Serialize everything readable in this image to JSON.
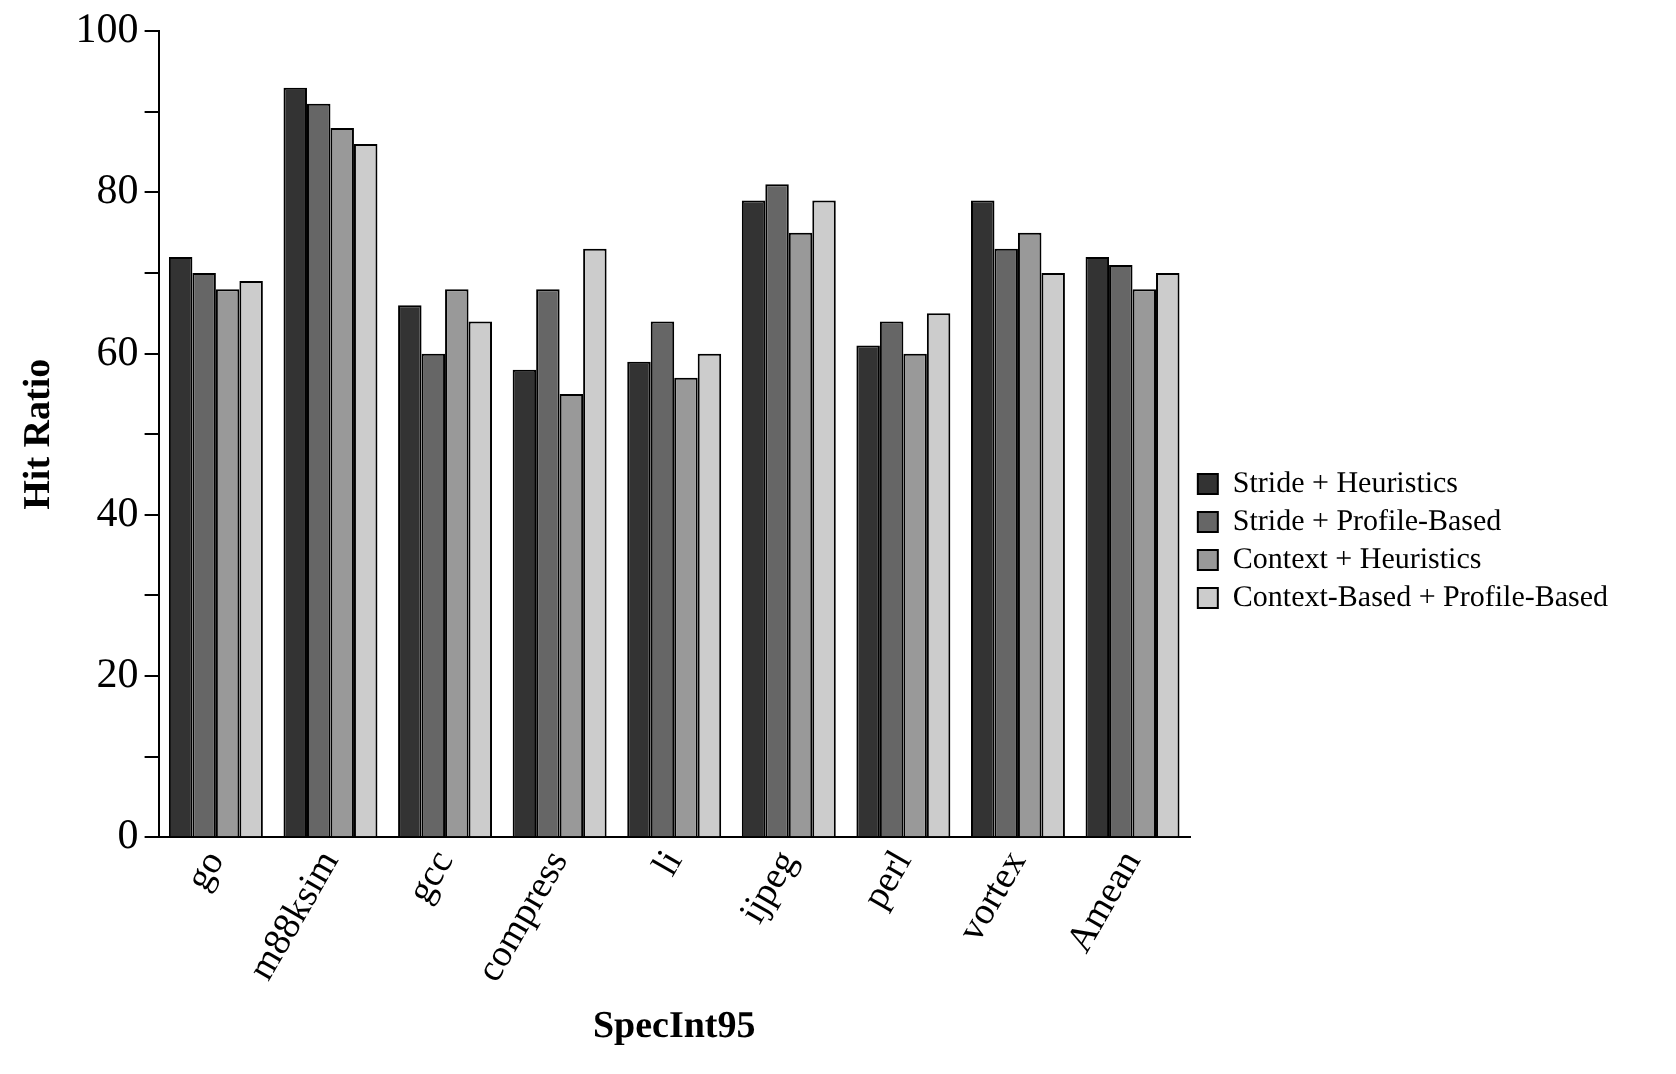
{
  "chart_data": {
    "type": "bar",
    "xlabel": "SpecInt95",
    "ylabel": "Hit Ratio",
    "categories": [
      "go",
      "m88ksim",
      "gcc",
      "compress",
      "li",
      "ijpeg",
      "perl",
      "vortex",
      "Amean"
    ],
    "series": [
      {
        "name": "Stride + Heuristics",
        "color": "#333333",
        "values": [
          72,
          93,
          66,
          58,
          59,
          79,
          61,
          79,
          72
        ]
      },
      {
        "name": "Stride + Profile-Based",
        "color": "#666666",
        "values": [
          70,
          91,
          60,
          68,
          64,
          81,
          64,
          73,
          71
        ]
      },
      {
        "name": "Context + Heuristics",
        "color": "#999999",
        "values": [
          68,
          88,
          68,
          55,
          57,
          75,
          60,
          75,
          68
        ]
      },
      {
        "name": "Context-Based + Profile-Based",
        "color": "#cccccc",
        "values": [
          69,
          86,
          64,
          73,
          60,
          79,
          65,
          70,
          70
        ]
      }
    ],
    "ylim": [
      0,
      100
    ],
    "yticks": [
      0,
      {
        "value": 10,
        "label": null
      },
      20,
      {
        "value": 30,
        "label": null
      },
      40,
      {
        "value": 50,
        "label": null
      },
      60,
      {
        "value": 70,
        "label": null
      },
      80,
      {
        "value": 90,
        "label": null
      },
      100
    ],
    "grid": false,
    "legend": "right"
  }
}
